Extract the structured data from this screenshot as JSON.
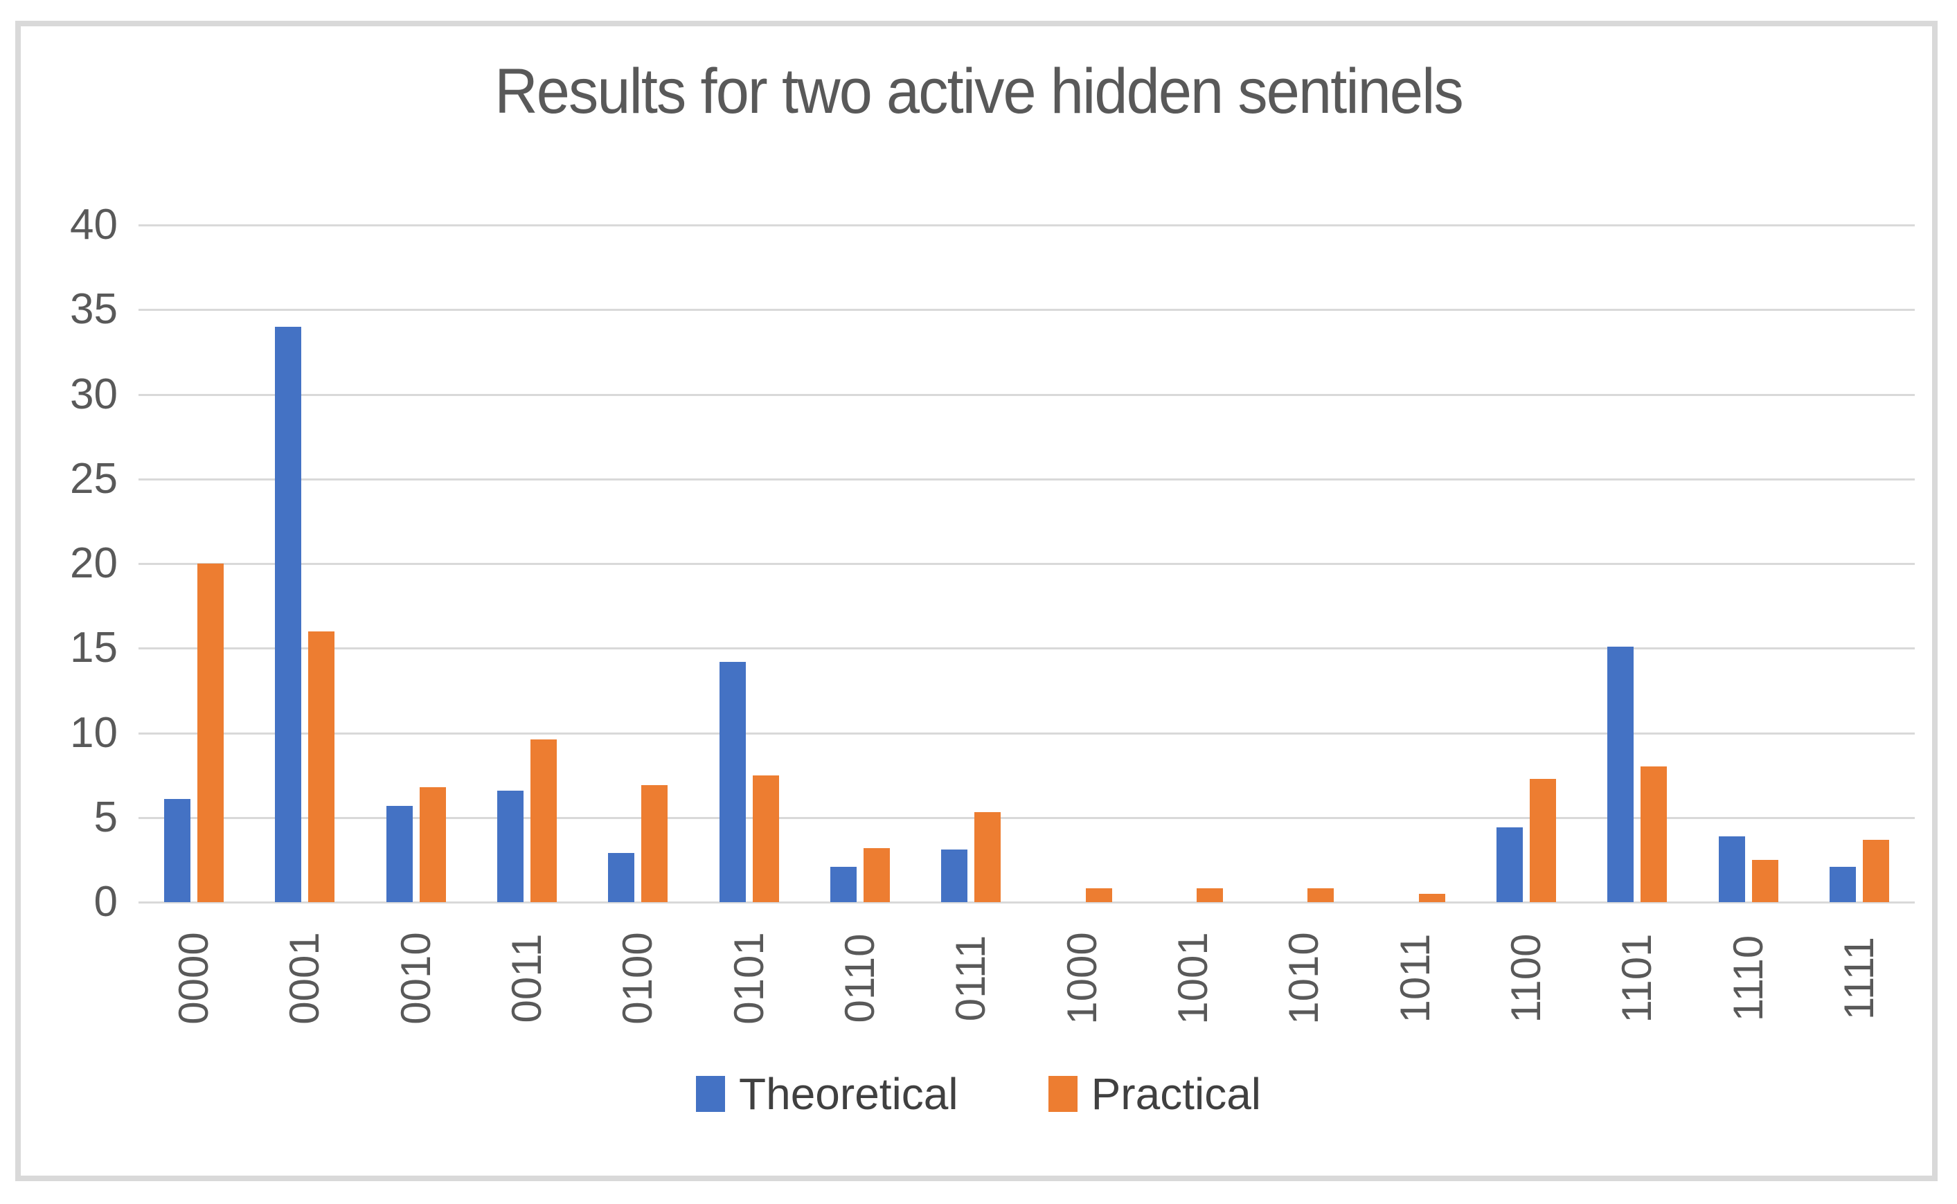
{
  "chart_data": {
    "type": "bar",
    "title": "Results for two active hidden sentinels",
    "categories": [
      "0000",
      "0001",
      "0010",
      "0011",
      "0100",
      "0101",
      "0110",
      "0111",
      "1000",
      "1001",
      "1010",
      "1011",
      "1100",
      "1101",
      "1110",
      "1111"
    ],
    "series": [
      {
        "name": "Theoretical",
        "color": "#4472C4",
        "values": [
          6.1,
          34,
          5.7,
          6.6,
          2.9,
          14.2,
          2.1,
          3.1,
          0,
          0,
          0,
          0,
          4.4,
          15.1,
          3.9,
          2.1
        ]
      },
      {
        "name": "Practical",
        "color": "#ED7D31",
        "values": [
          20,
          16,
          6.8,
          9.6,
          6.9,
          7.5,
          3.2,
          5.3,
          0.8,
          0.8,
          0.8,
          0.5,
          7.3,
          8,
          2.5,
          3.7
        ]
      }
    ],
    "xlabel": "",
    "ylabel": "",
    "ylim": [
      0,
      40
    ],
    "y_ticks": [
      0,
      5,
      10,
      15,
      20,
      25,
      30,
      35,
      40
    ],
    "grid": true,
    "x_tick_rotation": -90,
    "legend_position": "bottom",
    "grid_color": "#D9D9D9",
    "axis_text_color": "#595959",
    "title_color": "#595959",
    "legend_text_color": "#404040"
  }
}
